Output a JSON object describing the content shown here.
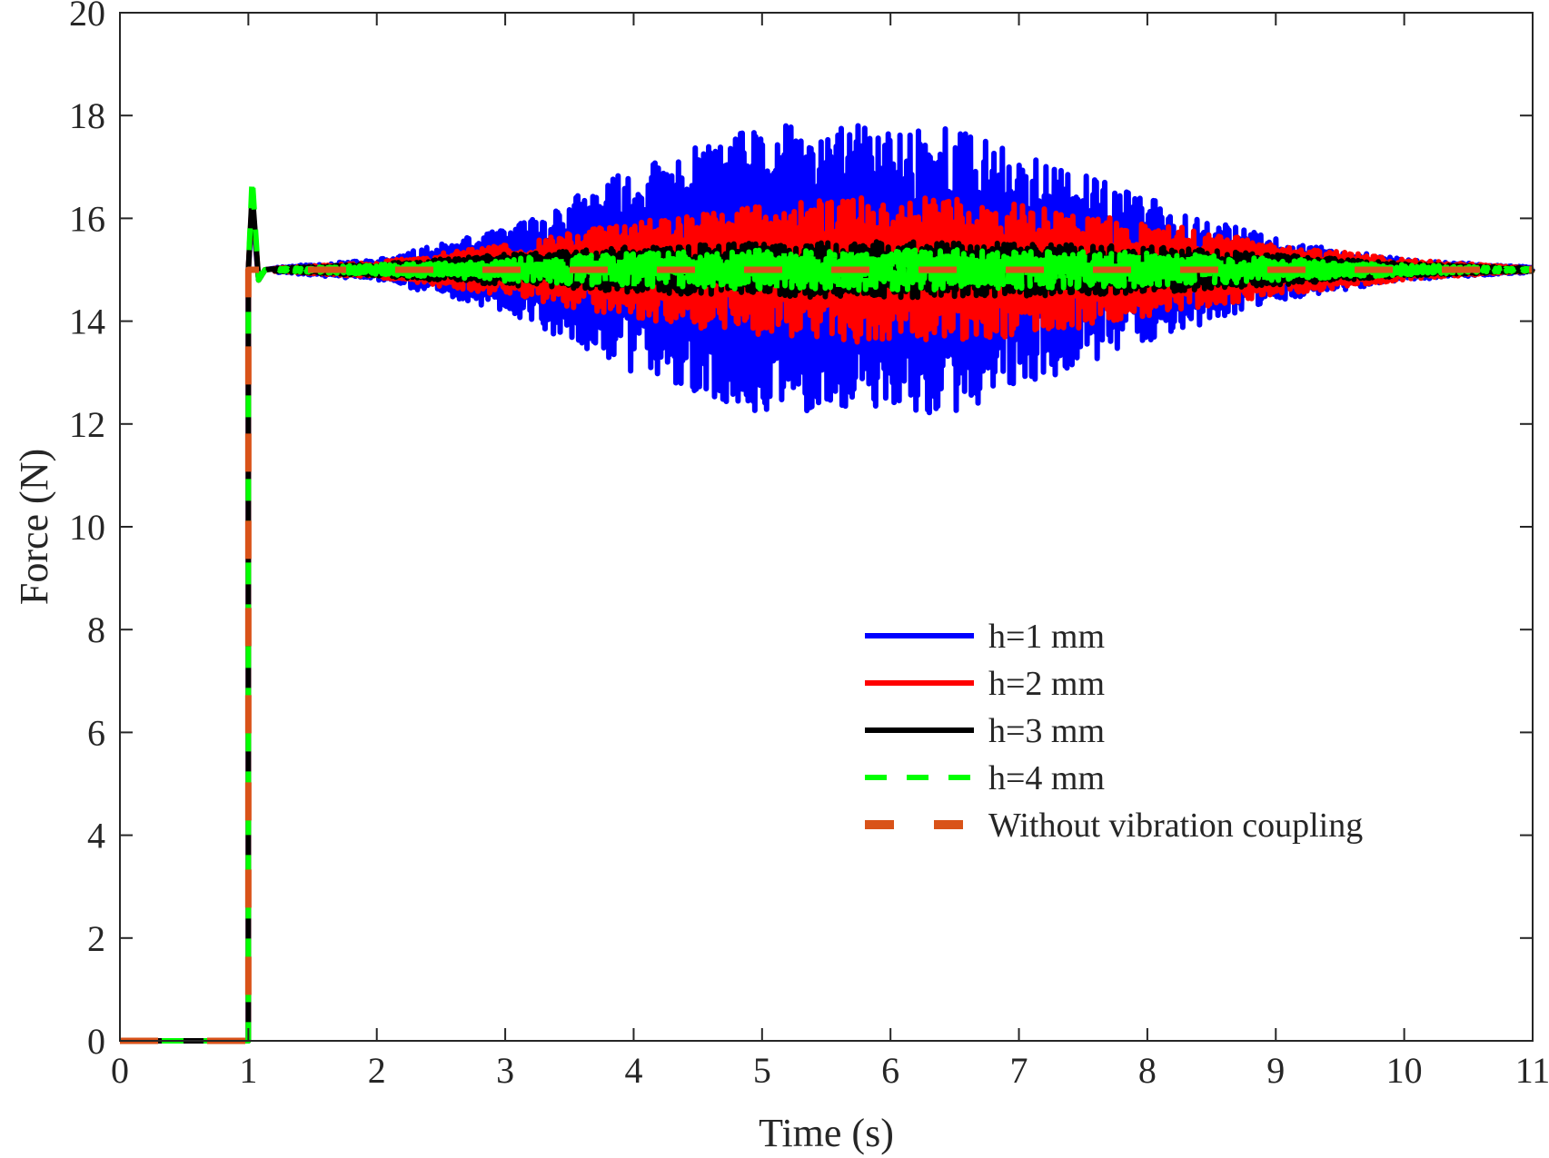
{
  "chart_data": {
    "type": "line",
    "title": "",
    "xlabel": "Time (s)",
    "ylabel": "Force (N)",
    "xlim": [
      0,
      11
    ],
    "ylim": [
      0,
      20
    ],
    "xticks": [
      0,
      1,
      2,
      3,
      4,
      5,
      6,
      7,
      8,
      9,
      10,
      11
    ],
    "yticks": [
      0,
      2,
      4,
      6,
      8,
      10,
      12,
      14,
      16,
      18,
      20
    ],
    "grid": false,
    "legend_position": "center-right",
    "step": {
      "time": 1.0,
      "from": 0,
      "to": 15
    },
    "series": [
      {
        "name": "h=1 mm",
        "color": "#0000ff",
        "style": "solid",
        "peak_overshoot": 16.2,
        "steady_value": 15,
        "oscillation_half_amplitude_envelope": {
          "t": [
            1.2,
            2.0,
            3.0,
            4.0,
            5.0,
            6.0,
            6.3,
            7.0,
            8.0,
            9.0,
            10.0,
            11.0
          ],
          "a": [
            0.05,
            0.2,
            0.8,
            2.0,
            2.8,
            2.8,
            3.0,
            2.3,
            1.4,
            0.6,
            0.2,
            0.05
          ]
        }
      },
      {
        "name": "h=2 mm",
        "color": "#ff0000",
        "style": "solid",
        "peak_overshoot": 16.4,
        "steady_value": 15,
        "oscillation_half_amplitude_envelope": {
          "t": [
            1.2,
            2.0,
            3.0,
            4.0,
            5.0,
            6.0,
            7.0,
            8.0,
            9.0,
            10.0,
            11.0
          ],
          "a": [
            0.03,
            0.15,
            0.5,
            0.95,
            1.3,
            1.45,
            1.3,
            0.95,
            0.5,
            0.2,
            0.03
          ]
        }
      },
      {
        "name": "h=3 mm",
        "color": "#000000",
        "style": "solid",
        "peak_overshoot": 16.5,
        "steady_value": 15,
        "oscillation_half_amplitude_envelope": {
          "t": [
            1.2,
            2.0,
            3.0,
            4.0,
            5.0,
            6.0,
            7.0,
            8.0,
            9.0,
            10.0,
            11.0
          ],
          "a": [
            0.03,
            0.12,
            0.3,
            0.45,
            0.52,
            0.55,
            0.52,
            0.45,
            0.3,
            0.12,
            0.03
          ]
        }
      },
      {
        "name": "h=4 mm",
        "color": "#00ff00",
        "style": "dashed",
        "peak_overshoot": 16.8,
        "steady_value": 15,
        "oscillation_half_amplitude_envelope": {
          "t": [
            1.2,
            2.0,
            3.0,
            4.0,
            5.0,
            6.0,
            7.0,
            8.0,
            9.0,
            10.0,
            11.0
          ],
          "a": [
            0.02,
            0.1,
            0.22,
            0.33,
            0.38,
            0.4,
            0.38,
            0.33,
            0.22,
            0.1,
            0.02
          ]
        }
      },
      {
        "name": "Without vibration coupling",
        "color": "#d95319",
        "style": "dashed",
        "peak_overshoot": 15,
        "steady_value": 15,
        "oscillation_half_amplitude_envelope": null
      }
    ]
  }
}
